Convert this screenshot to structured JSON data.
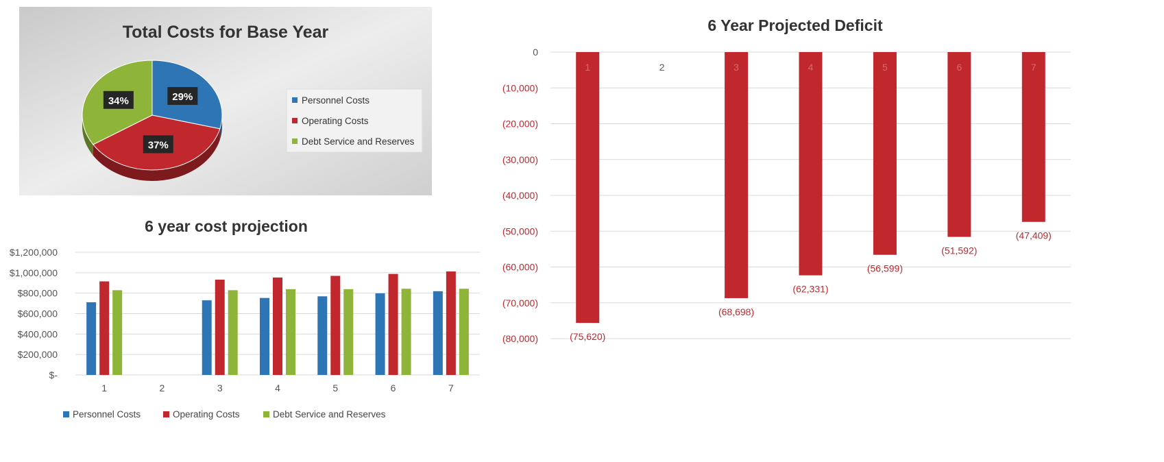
{
  "chart_data": [
    {
      "type": "pie",
      "title": "Total Costs for Base Year",
      "categories": [
        "Personnel Costs",
        "Operating Costs",
        "Debt Service and Reserves"
      ],
      "values": [
        29,
        37,
        34
      ],
      "data_labels": [
        "29%",
        "37%",
        "34%"
      ],
      "colors": [
        "#2e75b6",
        "#c0282d",
        "#8fb43a"
      ],
      "legend": "right"
    },
    {
      "type": "bar",
      "title": "6 year cost projection",
      "categories": [
        "1",
        "2",
        "3",
        "4",
        "5",
        "6",
        "7"
      ],
      "series": [
        {
          "name": "Personnel Costs",
          "color": "#2e75b6",
          "values": [
            711000,
            null,
            730000,
            753000,
            769000,
            798000,
            819000
          ]
        },
        {
          "name": "Operating Costs",
          "color": "#c0282d",
          "values": [
            915000,
            null,
            932000,
            953000,
            969000,
            988000,
            1012000
          ]
        },
        {
          "name": "Debt Service and Reserves",
          "color": "#8fb43a",
          "values": [
            829000,
            null,
            829000,
            839000,
            839000,
            843000,
            843000
          ]
        }
      ],
      "yticks": [
        "$-",
        "$200,000",
        "$400,000",
        "$600,000",
        "$800,000",
        "$1,000,000",
        "$1,200,000"
      ],
      "ylim": [
        0,
        1200000
      ],
      "grid": true,
      "legend": "bottom"
    },
    {
      "type": "bar",
      "title": "6 Year Projected Deficit",
      "categories": [
        "1",
        "2",
        "3",
        "4",
        "5",
        "6",
        "7"
      ],
      "values": [
        -75620,
        null,
        -68698,
        -62331,
        -56599,
        -51592,
        -47409
      ],
      "data_labels": [
        "(75,620)",
        "",
        "(68,698)",
        "(62,331)",
        "(56,599)",
        "(51,592)",
        "(47,409)"
      ],
      "color": "#c0282d",
      "yticks": [
        "0",
        "(10,000)",
        "(20,000)",
        "(30,000)",
        "(40,000)",
        "(50,000)",
        "(60,000)",
        "(70,000)",
        "(80,000)"
      ],
      "ylim": [
        -80000,
        0
      ],
      "grid": true
    }
  ]
}
